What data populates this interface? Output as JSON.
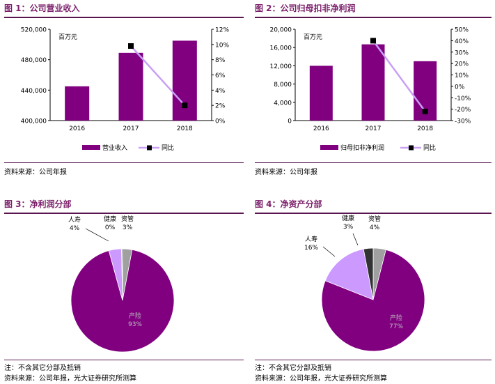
{
  "colors": {
    "accent": "#7B1F6A",
    "bar": "#800080",
    "line": "#C9A0F5",
    "marker": "#000000",
    "grey": "#A0A0A0",
    "dark": "#404040",
    "lavender": "#CC99FF"
  },
  "fig1": {
    "title": "图 1：公司营业收入",
    "unit": "百万元",
    "source": "资料来源：公司年报",
    "chart_data": {
      "type": "bar",
      "categories": [
        "2016",
        "2017",
        "2018"
      ],
      "series": [
        {
          "name": "营业收入",
          "axis": "left",
          "values": [
            445000,
            489000,
            505000
          ]
        },
        {
          "name": "同比",
          "axis": "right",
          "kind": "line",
          "values": [
            null,
            9.8,
            2.0
          ]
        }
      ],
      "ylim": [
        400000,
        520000
      ],
      "y2lim": [
        0,
        12
      ],
      "yticks": [
        "520,000",
        "480,000",
        "440,000",
        "400,000"
      ],
      "y2ticks": [
        "12%",
        "10%",
        "8%",
        "6%",
        "4%",
        "2%",
        "0%"
      ],
      "legend": [
        "营业收入",
        "同比"
      ]
    }
  },
  "fig2": {
    "title": "图 2：公司归母扣非净利润",
    "unit": "百万元",
    "source": "资料来源：公司年报",
    "chart_data": {
      "type": "bar",
      "categories": [
        "2016",
        "2017",
        "2018"
      ],
      "series": [
        {
          "name": "归母扣非净利润",
          "axis": "left",
          "values": [
            12000,
            16700,
            13000
          ]
        },
        {
          "name": "同比",
          "axis": "right",
          "kind": "line",
          "values": [
            null,
            40,
            -22
          ]
        }
      ],
      "ylim": [
        0,
        20000
      ],
      "y2lim": [
        -30,
        50
      ],
      "yticks": [
        "20,000",
        "16,000",
        "12,000",
        "8,000",
        "4,000",
        "0"
      ],
      "y2ticks": [
        "50%",
        "40%",
        "30%",
        "20%",
        "10%",
        "0%",
        "-10%",
        "-20%",
        "-30%"
      ],
      "legend": [
        "归母扣非净利润",
        "同比"
      ]
    }
  },
  "fig3": {
    "title": "图 3：净利润分部",
    "note": "注：不含其它分部及抵销",
    "source": "资料来源：公司年报，光大证券研究所测算",
    "chart_data": {
      "type": "pie",
      "slices": [
        {
          "label": "资管",
          "pct": "3%",
          "value": 3
        },
        {
          "label": "产险",
          "pct": "93%",
          "value": 93
        },
        {
          "label": "人寿",
          "pct": "4%",
          "value": 4
        },
        {
          "label": "健康",
          "pct": "0%",
          "value": 0.3
        }
      ]
    }
  },
  "fig4": {
    "title": "图 4：净资产分部",
    "note": "注：不含其它分部及抵销",
    "source": "资料来源：公司年报，光大证券研究所测算",
    "chart_data": {
      "type": "pie",
      "slices": [
        {
          "label": "资管",
          "pct": "4%",
          "value": 4
        },
        {
          "label": "产险",
          "pct": "77%",
          "value": 77
        },
        {
          "label": "人寿",
          "pct": "16%",
          "value": 16
        },
        {
          "label": "健康",
          "pct": "3%",
          "value": 3
        }
      ]
    }
  }
}
